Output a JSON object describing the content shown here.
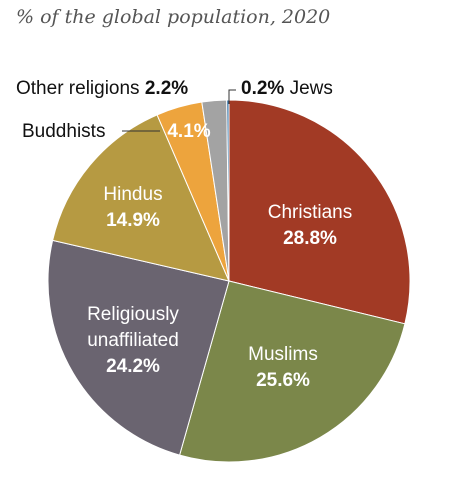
{
  "subtitle": "% of the global population, 2020",
  "chart_data": {
    "type": "pie",
    "subtitle": "% of the global population, 2020",
    "slices": [
      {
        "name": "Christians",
        "value": 28.8,
        "label": "28.8%",
        "color": "#a23a25",
        "text_color": "#ffffff"
      },
      {
        "name": "Muslims",
        "value": 25.6,
        "label": "25.6%",
        "color": "#7b874a",
        "text_color": "#ffffff"
      },
      {
        "name": "Religiously unaffiliated",
        "value": 24.2,
        "label": "24.2%",
        "color": "#6a6470",
        "text_color": "#ffffff"
      },
      {
        "name": "Hindus",
        "value": 14.9,
        "label": "14.9%",
        "color": "#b69a42",
        "text_color": "#ffffff"
      },
      {
        "name": "Buddhists",
        "value": 4.1,
        "label": "4.1%",
        "color": "#eda43d",
        "text_color": "#ffffff"
      },
      {
        "name": "Other religions",
        "value": 2.2,
        "label": "2.2%",
        "color": "#a3a3a3",
        "text_color": "#000000"
      },
      {
        "name": "Jews",
        "value": 0.2,
        "label": "0.2%",
        "color": "#2f6fa3",
        "text_color": "#000000"
      }
    ]
  }
}
